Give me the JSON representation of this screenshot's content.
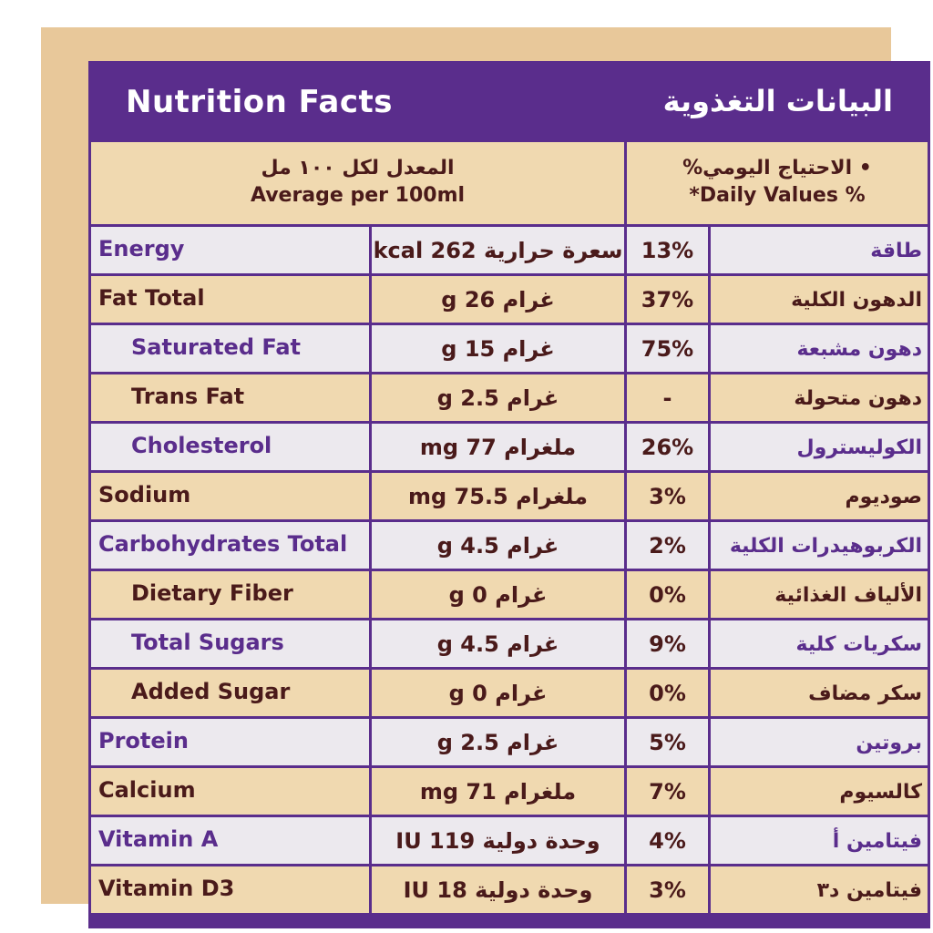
{
  "header": {
    "title_en": "Nutrition Facts",
    "title_ar": "البيانات التغذوية",
    "avg_ar": "المعدل لكل ١٠٠ مل",
    "avg_en": "Average per 100ml",
    "dv_ar": "• الاحتياج اليومي%",
    "dv_en": "*Daily Values %"
  },
  "colors": {
    "purple": "#5a2d8c",
    "tan": "#f0d9b0",
    "light": "#ece9ee",
    "brown_text": "#4a1a1a"
  },
  "rows": [
    {
      "en": "Energy",
      "amount": "سعرة حرارية 262 kcal",
      "dv": "13%",
      "ar": "طاقة"
    },
    {
      "en": "Fat Total",
      "amount": "غرام 26 g",
      "dv": "37%",
      "ar": "الدهون الكلية"
    },
    {
      "en": "Saturated Fat",
      "amount": "غرام 15 g",
      "dv": "75%",
      "ar": "دهون مشبعة"
    },
    {
      "en": "Trans Fat",
      "amount": "غرام 2.5 g",
      "dv": "-",
      "ar": "دهون متحولة"
    },
    {
      "en": "Cholesterol",
      "amount": "ملغرام 77 mg",
      "dv": "26%",
      "ar": "الكوليسترول"
    },
    {
      "en": "Sodium",
      "amount": "ملغرام 75.5 mg",
      "dv": "3%",
      "ar": "صوديوم"
    },
    {
      "en": "Carbohydrates Total",
      "amount": "غرام 4.5 g",
      "dv": "2%",
      "ar": "الكربوهيدرات الكلية"
    },
    {
      "en": "Dietary Fiber",
      "amount": "غرام 0 g",
      "dv": "0%",
      "ar": "الألياف الغذائية"
    },
    {
      "en": "Total Sugars",
      "amount": "غرام 4.5 g",
      "dv": "9%",
      "ar": "سكريات كلية"
    },
    {
      "en": "Added Sugar",
      "amount": "غرام 0 g",
      "dv": "0%",
      "ar": "سكر مضاف"
    },
    {
      "en": "Protein",
      "amount": "غرام 2.5 g",
      "dv": "5%",
      "ar": "بروتين"
    },
    {
      "en": "Calcium",
      "amount": "ملغرام 71 mg",
      "dv": "7%",
      "ar": "كالسيوم"
    },
    {
      "en": "Vitamin A",
      "amount": "وحدة دولية 119 IU",
      "dv": "4%",
      "ar": "فيتامين أ"
    },
    {
      "en": "Vitamin D3",
      "amount": "وحدة دولية 18 IU",
      "dv": "3%",
      "ar": "فيتامين د٣"
    }
  ]
}
